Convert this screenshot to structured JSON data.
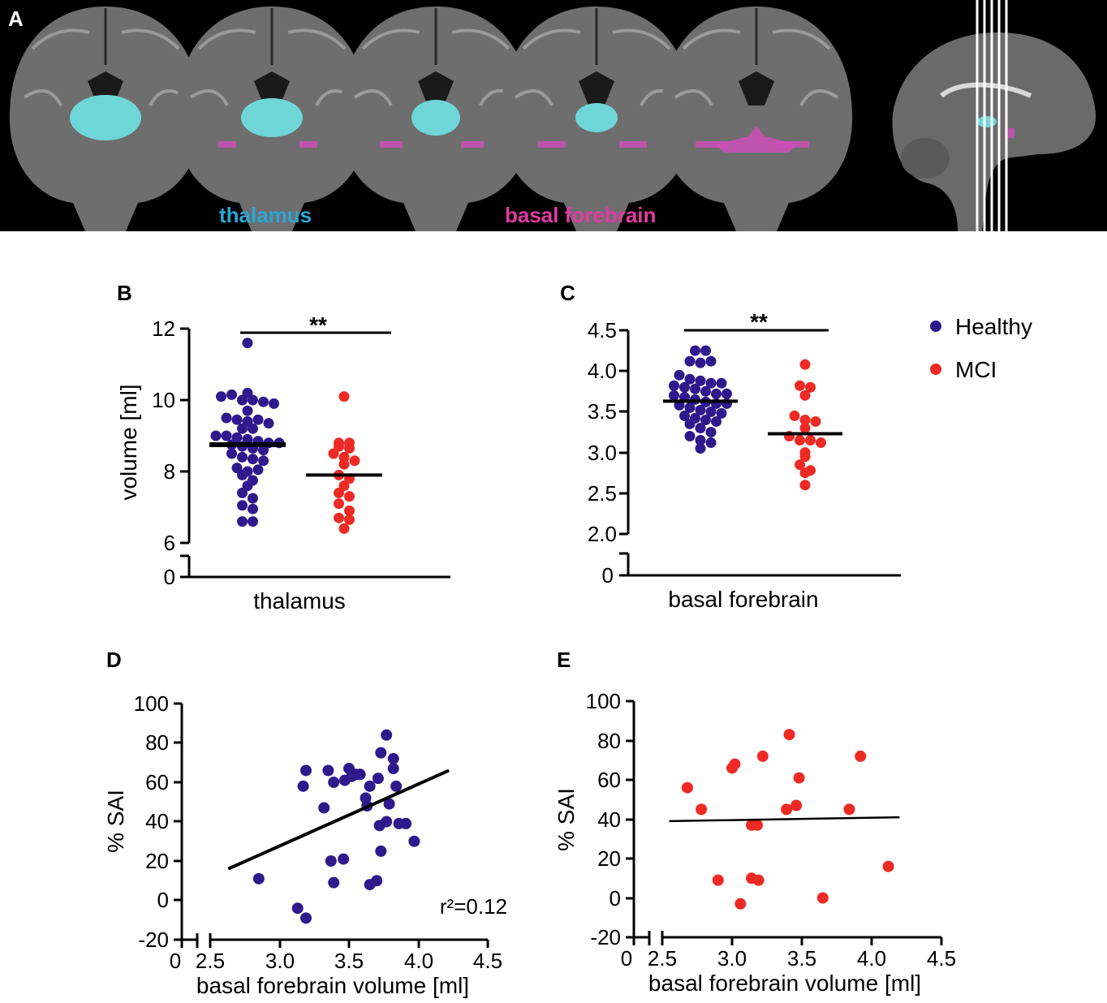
{
  "panel_a": {
    "letter": "A",
    "label_thalamus": "thalamus",
    "label_basal_forebrain": "basal forebrain",
    "colors": {
      "background": "#000000",
      "thalamus": "#6fd6d8",
      "thalamus_label": "#2aa7d8",
      "basal_forebrain": "#cc4fb8",
      "basal_forebrain_label": "#e23aa3",
      "brain": "#6e6e6e"
    }
  },
  "legend": {
    "items": [
      {
        "label": "Healthy",
        "color": "#2e1a8c"
      },
      {
        "label": "MCI",
        "color": "#ee2a24"
      }
    ]
  },
  "chart_data": [
    {
      "panel": "B",
      "type": "scatter",
      "xlabel": "thalamus",
      "ylabel": "volume [ml]",
      "y_ticks": [
        "12",
        "10",
        "8",
        "6",
        "0"
      ],
      "y_range": [
        6,
        12
      ],
      "axis_break": true,
      "significance": "**",
      "series": [
        {
          "name": "Healthy",
          "color": "#2e1a8c",
          "mean": 8.75,
          "values": [
            11.6,
            10.2,
            10.1,
            10.15,
            10.0,
            10.0,
            9.95,
            9.9,
            9.7,
            9.5,
            9.45,
            9.4,
            9.45,
            9.35,
            9.2,
            9.2,
            9.0,
            9.0,
            8.95,
            8.9,
            8.85,
            8.8,
            8.8,
            8.75,
            8.7,
            8.65,
            8.6,
            8.5,
            8.4,
            8.35,
            8.3,
            8.1,
            8.0,
            8.05,
            7.9,
            7.75,
            7.6,
            7.4,
            7.25,
            7.05,
            6.95,
            6.6,
            6.6
          ]
        },
        {
          "name": "MCI",
          "color": "#ee2a24",
          "mean": 7.9,
          "values": [
            10.1,
            8.8,
            8.8,
            8.7,
            8.65,
            8.5,
            8.4,
            8.3,
            8.2,
            7.9,
            7.8,
            7.6,
            7.4,
            7.3,
            7.1,
            6.9,
            6.7,
            6.65,
            6.4
          ]
        }
      ]
    },
    {
      "panel": "C",
      "type": "scatter",
      "xlabel": "basal forebrain",
      "y_ticks": [
        "4.5",
        "4.0",
        "3.5",
        "3.0",
        "2.5",
        "2.0",
        "0"
      ],
      "y_range": [
        2.0,
        4.5
      ],
      "axis_break": true,
      "significance": "**",
      "series": [
        {
          "name": "Healthy",
          "color": "#2e1a8c",
          "mean": 3.63,
          "values": [
            4.25,
            4.25,
            4.12,
            4.1,
            4.12,
            3.95,
            3.9,
            3.88,
            3.85,
            3.82,
            3.85,
            3.8,
            3.78,
            3.75,
            3.72,
            3.7,
            3.72,
            3.68,
            3.65,
            3.62,
            3.6,
            3.6,
            3.58,
            3.55,
            3.52,
            3.5,
            3.48,
            3.45,
            3.42,
            3.4,
            3.38,
            3.35,
            3.3,
            3.25,
            3.2,
            3.15,
            3.12,
            3.05
          ]
        },
        {
          "name": "MCI",
          "color": "#ee2a24",
          "mean": 3.23,
          "values": [
            4.08,
            3.82,
            3.8,
            3.7,
            3.45,
            3.4,
            3.38,
            3.3,
            3.2,
            3.15,
            3.15,
            3.12,
            3.0,
            2.95,
            2.85,
            2.78,
            2.75,
            2.6
          ]
        }
      ]
    },
    {
      "panel": "D",
      "type": "scatter",
      "xlabel": "basal forebrain volume [ml]",
      "ylabel": "% SAI",
      "x_ticks": [
        "0",
        "2.5",
        "3.0",
        "3.5",
        "4.0",
        "4.5"
      ],
      "y_ticks": [
        "100",
        "80",
        "60",
        "40",
        "20",
        "0",
        "-20"
      ],
      "x_range": [
        2.5,
        4.5
      ],
      "y_range": [
        -20,
        100
      ],
      "annotation": "r²=0.12",
      "fit": {
        "x": [
          2.63,
          4.22
        ],
        "y": [
          16,
          66
        ]
      },
      "series": [
        {
          "name": "Healthy",
          "color": "#2e1a8c",
          "points": [
            [
              2.85,
              11
            ],
            [
              3.13,
              -4
            ],
            [
              3.19,
              -9
            ],
            [
              3.17,
              58
            ],
            [
              3.19,
              66
            ],
            [
              3.32,
              47
            ],
            [
              3.35,
              66
            ],
            [
              3.37,
              20
            ],
            [
              3.39,
              9
            ],
            [
              3.39,
              60
            ],
            [
              3.46,
              21
            ],
            [
              3.47,
              61
            ],
            [
              3.5,
              67
            ],
            [
              3.52,
              63
            ],
            [
              3.55,
              64
            ],
            [
              3.58,
              64
            ],
            [
              3.62,
              52
            ],
            [
              3.63,
              48
            ],
            [
              3.65,
              58
            ],
            [
              3.65,
              8
            ],
            [
              3.7,
              10
            ],
            [
              3.71,
              62
            ],
            [
              3.72,
              38
            ],
            [
              3.73,
              75
            ],
            [
              3.73,
              25
            ],
            [
              3.77,
              84
            ],
            [
              3.77,
              40
            ],
            [
              3.82,
              72
            ],
            [
              3.82,
              67
            ],
            [
              3.84,
              58
            ],
            [
              3.86,
              39
            ],
            [
              3.91,
              39
            ],
            [
              3.97,
              30
            ],
            [
              3.79,
              49
            ]
          ]
        }
      ]
    },
    {
      "panel": "E",
      "type": "scatter",
      "xlabel": "basal forebrain volume [ml]",
      "ylabel": "% SAI",
      "x_ticks": [
        "0",
        "2.5",
        "3.0",
        "3.5",
        "4.0",
        "4.5"
      ],
      "y_ticks": [
        "100",
        "80",
        "60",
        "40",
        "20",
        "0",
        "-20"
      ],
      "x_range": [
        2.5,
        4.5
      ],
      "y_range": [
        -20,
        100
      ],
      "fit": {
        "x": [
          2.55,
          4.2
        ],
        "y": [
          39,
          41
        ]
      },
      "series": [
        {
          "name": "MCI",
          "color": "#ee2a24",
          "points": [
            [
              2.68,
              56
            ],
            [
              2.78,
              45
            ],
            [
              2.9,
              9
            ],
            [
              3.0,
              66
            ],
            [
              3.02,
              68
            ],
            [
              3.06,
              -3
            ],
            [
              3.14,
              10
            ],
            [
              3.14,
              37
            ],
            [
              3.18,
              37
            ],
            [
              3.19,
              9
            ],
            [
              3.22,
              72
            ],
            [
              3.39,
              45
            ],
            [
              3.41,
              83
            ],
            [
              3.46,
              47
            ],
            [
              3.48,
              61
            ],
            [
              3.65,
              0
            ],
            [
              3.84,
              45
            ],
            [
              3.92,
              72
            ],
            [
              4.12,
              16
            ]
          ]
        }
      ]
    }
  ]
}
